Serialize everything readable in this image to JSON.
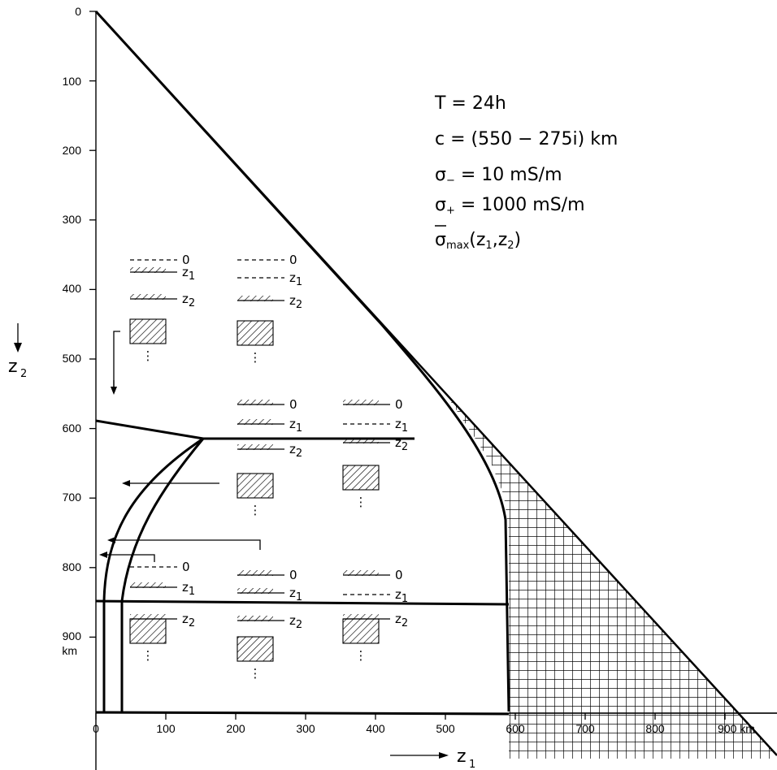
{
  "parameters": {
    "line1": "T = 24h",
    "line2": "c = (550 − 275i) km",
    "line3_sym": "σ",
    "line3_sub": "−",
    "line3_rest": " = 10 mS/m",
    "line4_sym": "σ",
    "line4_sub": "+",
    "line4_rest": " = 1000 mS/m",
    "line5_sym": "σ",
    "line5_sub": "max",
    "line5_rest": "(z",
    "line5_a": "1",
    "line5_mid": ",z",
    "line5_b": "2",
    "line5_end": ")"
  },
  "x_axis": {
    "ticks": [
      "0",
      "100",
      "200",
      "300",
      "400",
      "500",
      "600",
      "700",
      "800",
      "900 km"
    ],
    "title": "z",
    "title_sub": "1"
  },
  "y_axis": {
    "ticks": [
      "0",
      "100",
      "200",
      "300",
      "400",
      "500",
      "600",
      "700",
      "800",
      "900"
    ],
    "unit": "km",
    "title": "z",
    "title_sub": "2"
  },
  "legend_labels": {
    "zero": "0",
    "z": "z",
    "one": "1",
    "two": "2",
    "dots": "⋮"
  }
}
